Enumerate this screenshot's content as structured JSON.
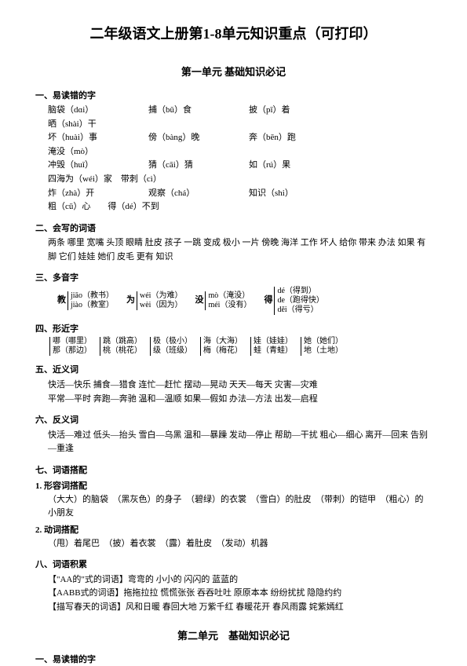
{
  "title": "二年级语文上册第1-8单元知识重点（可打印）",
  "unit1_title": "第一单元 基础知识必记",
  "s1": {
    "head": "一、易读错的字",
    "rows": [
      [
        "脑袋（dɑi）",
        "捕（bǔ）食",
        "披（pī）着",
        "晒（shài）干"
      ],
      [
        "坏（huài）事",
        "傍（bàng）晚",
        "奔（bēn）跑",
        "淹没（mò）"
      ],
      [
        "冲毁（huǐ）",
        "猜（cāi）猜",
        "如（rú）果",
        "四海为（wéi）家　带刺（cì）"
      ],
      [
        "炸（zhà）开",
        "观察（chá）",
        "知识（shi）",
        "粗（cū）心　　得（dé）不到"
      ]
    ]
  },
  "s2": {
    "head": "二、会写的词语",
    "text": "两条 哪里 宽嘴 头顶 眼睛 肚皮 孩子 一跳 变成 极小 一片 傍晚 海洋 工作 坏人 给你 带来 办法 如果 有脚 它们 娃娃 她们 皮毛 更有 知识"
  },
  "s3": {
    "head": "三、多音字",
    "items": [
      {
        "ch": "教",
        "a": "jiāo（教书）",
        "b": "jiào（教室）"
      },
      {
        "ch": "为",
        "a": "wéi（为难）",
        "b": "wèi（因为）"
      },
      {
        "ch": "没",
        "a": "mò（淹没）",
        "b": "méi（没有）"
      },
      {
        "ch": "得",
        "a": "dé（得到）",
        "b": "de（跑得快）",
        "c": "děi（得亏）"
      }
    ]
  },
  "s4": {
    "head": "四、形近字",
    "pairs": [
      {
        "a": "哪（哪里）",
        "b": "那（那边）"
      },
      {
        "a": "跳（跳高）",
        "b": "桃（桃花）"
      },
      {
        "a": "极（极小）",
        "b": "级（班级）"
      },
      {
        "a": "海（大海）",
        "b": "梅（梅花）"
      },
      {
        "a": "娃（娃娃）",
        "b": "蛙（青蛙）"
      },
      {
        "a": "她（她们）",
        "b": "地（土地）"
      }
    ]
  },
  "s5": {
    "head": "五、近义词",
    "text": "快活—快乐 捕食—猎食 连忙—赶忙 摆动—晃动 天天—每天 灾害—灾难\n平常—平时 奔跑—奔驰 温和—温顺 如果—假如 办法—方法 出发—启程"
  },
  "s6": {
    "head": "六、反义词",
    "text": "快活—难过 低头—抬头 雪白—乌黑 温和—暴躁 发动—停止 帮助—干扰 粗心—细心 离开—回来 告别—重逢"
  },
  "s7": {
    "head": "七、词语搭配",
    "sub1_head": "1. 形容词搭配",
    "sub1_text": "（大大）的脑袋　（黑灰色）的身子　（碧绿）的衣裳　（雪白）的肚皮　（带刺）的铠甲　（粗心）的小朋友",
    "sub2_head": "2. 动词搭配",
    "sub2_text": "（甩）着尾巴　（披）着衣裳　（露）着肚皮　（发动）机器"
  },
  "s8": {
    "head": "八、词语积累",
    "l1": "【\"AA的\"式的词语】弯弯的 小小的 闪闪的 蓝蓝的",
    "l2": "【AABB式的词语】拖拖拉拉 慌慌张张 吞吞吐吐 原原本本 纷纷扰扰 隐隐约约",
    "l3": "【描写春天的词语】风和日暖 春回大地 万紫千红 春暖花开 春风雨露 姹紫嫣红"
  },
  "unit2_title": "第二单元　基础知识必记",
  "s9": {
    "head": "一、易读错的字"
  }
}
